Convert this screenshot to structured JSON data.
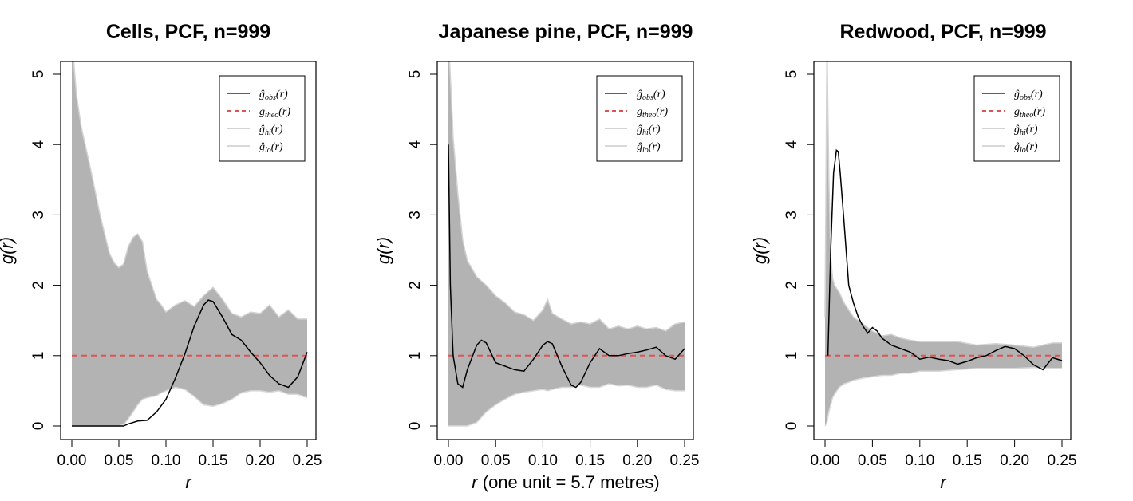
{
  "charts": [
    {
      "title": "Cells, PCF, n=999",
      "xlabel_italic": "r",
      "xlabel_rest": "",
      "ylabel": "g(r)",
      "chart_data": {
        "type": "line",
        "title": "Cells, PCF, n=999",
        "xlabel": "r",
        "ylabel": "g(r)",
        "xlim": [
          0,
          0.25
        ],
        "ylim": [
          0,
          5
        ],
        "xticks": [
          "0.00",
          "0.05",
          "0.10",
          "0.15",
          "0.20",
          "0.25"
        ],
        "yticks": [
          "0",
          "1",
          "2",
          "3",
          "4",
          "5"
        ],
        "legend_position": "top-right",
        "grid": false,
        "theo": 1,
        "obs": {
          "x": [
            0,
            0.02,
            0.04,
            0.05,
            0.055,
            0.06,
            0.07,
            0.08,
            0.09,
            0.1,
            0.11,
            0.12,
            0.13,
            0.14,
            0.145,
            0.15,
            0.16,
            0.17,
            0.18,
            0.19,
            0.2,
            0.21,
            0.22,
            0.23,
            0.24,
            0.25
          ],
          "y": [
            0,
            0,
            0,
            0,
            0,
            0.03,
            0.07,
            0.08,
            0.2,
            0.38,
            0.68,
            1.02,
            1.42,
            1.72,
            1.79,
            1.77,
            1.55,
            1.3,
            1.22,
            1.05,
            0.9,
            0.72,
            0.6,
            0.55,
            0.7,
            1.05
          ]
        },
        "envelope": {
          "x": [
            0,
            0.005,
            0.01,
            0.02,
            0.03,
            0.04,
            0.045,
            0.05,
            0.055,
            0.06,
            0.065,
            0.07,
            0.075,
            0.08,
            0.09,
            0.095,
            0.1,
            0.11,
            0.12,
            0.13,
            0.14,
            0.15,
            0.16,
            0.17,
            0.18,
            0.19,
            0.2,
            0.21,
            0.22,
            0.23,
            0.24,
            0.25
          ],
          "hi": [
            5.5,
            4.7,
            4.25,
            3.65,
            3.0,
            2.45,
            2.32,
            2.25,
            2.3,
            2.55,
            2.68,
            2.73,
            2.62,
            2.2,
            1.8,
            1.72,
            1.62,
            1.72,
            1.78,
            1.7,
            1.85,
            1.97,
            1.8,
            1.6,
            1.55,
            1.62,
            1.6,
            1.72,
            1.55,
            1.65,
            1.52,
            1.52
          ],
          "lo": [
            0,
            0,
            0,
            0,
            0,
            0,
            0,
            0,
            0.02,
            0.1,
            0.2,
            0.3,
            0.38,
            0.4,
            0.43,
            0.47,
            0.5,
            0.55,
            0.52,
            0.42,
            0.3,
            0.28,
            0.32,
            0.38,
            0.47,
            0.5,
            0.5,
            0.48,
            0.5,
            0.45,
            0.45,
            0.4
          ]
        }
      }
    },
    {
      "title": "Japanese pine, PCF, n=999",
      "xlabel_italic": "r",
      "xlabel_rest": " (one unit = 5.7 metres)",
      "ylabel": "g(r)",
      "chart_data": {
        "type": "line",
        "title": "Japanese pine, PCF, n=999",
        "xlabel": "r (one unit = 5.7 metres)",
        "ylabel": "g(r)",
        "xlim": [
          0,
          0.25
        ],
        "ylim": [
          0,
          5
        ],
        "xticks": [
          "0.00",
          "0.05",
          "0.10",
          "0.15",
          "0.20",
          "0.25"
        ],
        "yticks": [
          "0",
          "1",
          "2",
          "3",
          "4",
          "5"
        ],
        "legend_position": "top-right",
        "grid": false,
        "theo": 1,
        "obs": {
          "x": [
            0,
            0.002,
            0.005,
            0.01,
            0.015,
            0.02,
            0.03,
            0.035,
            0.04,
            0.05,
            0.06,
            0.07,
            0.08,
            0.09,
            0.1,
            0.105,
            0.11,
            0.12,
            0.13,
            0.135,
            0.14,
            0.15,
            0.16,
            0.17,
            0.18,
            0.19,
            0.2,
            0.21,
            0.22,
            0.23,
            0.24,
            0.25
          ],
          "y": [
            4.0,
            2.0,
            1.0,
            0.6,
            0.55,
            0.8,
            1.15,
            1.22,
            1.18,
            0.9,
            0.85,
            0.8,
            0.78,
            0.95,
            1.15,
            1.2,
            1.17,
            0.85,
            0.58,
            0.55,
            0.62,
            0.9,
            1.1,
            1.0,
            1.0,
            1.03,
            1.05,
            1.08,
            1.12,
            1.0,
            0.95,
            1.1
          ]
        },
        "envelope": {
          "x": [
            0,
            0.003,
            0.005,
            0.01,
            0.015,
            0.02,
            0.03,
            0.04,
            0.05,
            0.06,
            0.07,
            0.08,
            0.09,
            0.1,
            0.105,
            0.11,
            0.12,
            0.13,
            0.14,
            0.15,
            0.16,
            0.17,
            0.18,
            0.19,
            0.2,
            0.21,
            0.22,
            0.23,
            0.24,
            0.25
          ],
          "hi": [
            5.5,
            4.7,
            4.1,
            3.3,
            2.65,
            2.35,
            2.12,
            2.0,
            1.85,
            1.75,
            1.62,
            1.58,
            1.5,
            1.65,
            1.8,
            1.6,
            1.52,
            1.45,
            1.48,
            1.45,
            1.52,
            1.38,
            1.42,
            1.38,
            1.42,
            1.38,
            1.4,
            1.35,
            1.45,
            1.48
          ],
          "lo": [
            0,
            0,
            0,
            0,
            0,
            0,
            0.05,
            0.2,
            0.3,
            0.38,
            0.45,
            0.48,
            0.5,
            0.52,
            0.5,
            0.52,
            0.55,
            0.55,
            0.58,
            0.55,
            0.55,
            0.6,
            0.57,
            0.58,
            0.55,
            0.55,
            0.58,
            0.52,
            0.5,
            0.5
          ]
        }
      }
    },
    {
      "title": "Redwood, PCF, n=999",
      "xlabel_italic": "r",
      "xlabel_rest": "",
      "ylabel": "g(r)",
      "chart_data": {
        "type": "line",
        "title": "Redwood, PCF, n=999",
        "xlabel": "r",
        "ylabel": "g(r)",
        "xlim": [
          0,
          0.25
        ],
        "ylim": [
          0,
          5
        ],
        "xticks": [
          "0.00",
          "0.05",
          "0.10",
          "0.15",
          "0.20",
          "0.25"
        ],
        "yticks": [
          "0",
          "1",
          "2",
          "3",
          "4",
          "5"
        ],
        "legend_position": "top-right",
        "grid": false,
        "theo": 1,
        "obs": {
          "x": [
            0.003,
            0.006,
            0.009,
            0.012,
            0.014,
            0.016,
            0.02,
            0.025,
            0.03,
            0.035,
            0.04,
            0.045,
            0.05,
            0.055,
            0.06,
            0.07,
            0.08,
            0.09,
            0.1,
            0.11,
            0.12,
            0.13,
            0.14,
            0.15,
            0.16,
            0.17,
            0.18,
            0.19,
            0.2,
            0.21,
            0.22,
            0.23,
            0.24,
            0.25
          ],
          "y": [
            1.0,
            2.5,
            3.6,
            3.92,
            3.9,
            3.6,
            2.9,
            2.0,
            1.75,
            1.55,
            1.42,
            1.32,
            1.4,
            1.35,
            1.25,
            1.15,
            1.1,
            1.05,
            0.95,
            0.98,
            0.95,
            0.93,
            0.88,
            0.92,
            0.97,
            1.0,
            1.07,
            1.13,
            1.1,
            1.0,
            0.87,
            0.8,
            0.97,
            0.93
          ]
        },
        "envelope": {
          "x": [
            0,
            0.002,
            0.004,
            0.006,
            0.008,
            0.01,
            0.015,
            0.02,
            0.025,
            0.03,
            0.04,
            0.05,
            0.06,
            0.07,
            0.08,
            0.09,
            0.1,
            0.12,
            0.14,
            0.16,
            0.18,
            0.2,
            0.22,
            0.24,
            0.25
          ],
          "hi": [
            1.55,
            5.5,
            3.5,
            2.4,
            2.1,
            2.0,
            1.9,
            1.75,
            1.65,
            1.55,
            1.45,
            1.35,
            1.28,
            1.3,
            1.25,
            1.22,
            1.2,
            1.2,
            1.2,
            1.15,
            1.17,
            1.15,
            1.12,
            1.18,
            1.18
          ],
          "lo": [
            0.0,
            0.05,
            0.2,
            0.3,
            0.4,
            0.45,
            0.55,
            0.6,
            0.62,
            0.65,
            0.68,
            0.7,
            0.72,
            0.72,
            0.75,
            0.75,
            0.78,
            0.78,
            0.8,
            0.82,
            0.82,
            0.82,
            0.83,
            0.82,
            0.82
          ]
        }
      }
    }
  ],
  "legend": {
    "obs": "ĝobs(r)",
    "theo": "gtheo(r)",
    "hi": "ĝhi(r)",
    "lo": "ĝlo(r)"
  },
  "colors": {
    "envelope": "#b3b3b3",
    "obs": "#000000",
    "theo": "#df5353",
    "hi": "#d3d3d3",
    "lo": "#d9d9d9"
  }
}
